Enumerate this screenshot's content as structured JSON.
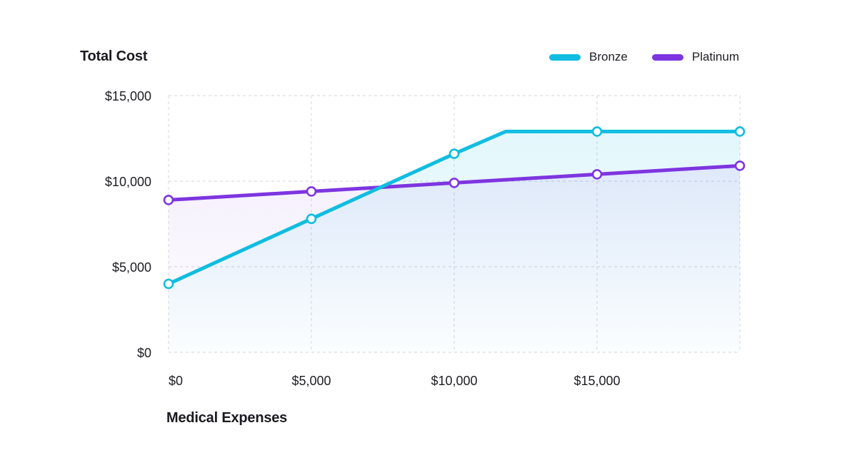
{
  "chart_data": {
    "type": "line",
    "title": "Total Cost",
    "xlabel": "Medical Expenses",
    "ylabel": "Total Cost",
    "xlim": [
      0,
      20000
    ],
    "ylim": [
      0,
      15000
    ],
    "x_ticks": [
      0,
      5000,
      10000,
      15000
    ],
    "x_tick_labels": [
      "$0",
      "$5,000",
      "$10,000",
      "$15,000"
    ],
    "y_ticks": [
      0,
      5000,
      10000,
      15000
    ],
    "y_tick_labels": [
      "$0",
      "$5,000",
      "$10,000",
      "$15,000"
    ],
    "grid": true,
    "legend_position": "top-right",
    "series": [
      {
        "name": "Bronze",
        "color": "#10bde0",
        "fill": "#e3f8fc",
        "points": [
          {
            "x": 0,
            "y": 4000,
            "marker": true
          },
          {
            "x": 5000,
            "y": 7800,
            "marker": true
          },
          {
            "x": 10000,
            "y": 11600,
            "marker": true
          },
          {
            "x": 11800,
            "y": 12900,
            "marker": false
          },
          {
            "x": 15000,
            "y": 12900,
            "marker": true
          },
          {
            "x": 20000,
            "y": 12900,
            "marker": true
          }
        ]
      },
      {
        "name": "Platinum",
        "color": "#7e35e0",
        "fill": "#f1ebfc",
        "points": [
          {
            "x": 0,
            "y": 8900,
            "marker": true
          },
          {
            "x": 5000,
            "y": 9400,
            "marker": true
          },
          {
            "x": 10000,
            "y": 9900,
            "marker": true
          },
          {
            "x": 15000,
            "y": 10400,
            "marker": true
          },
          {
            "x": 20000,
            "y": 10900,
            "marker": true
          }
        ]
      }
    ]
  }
}
